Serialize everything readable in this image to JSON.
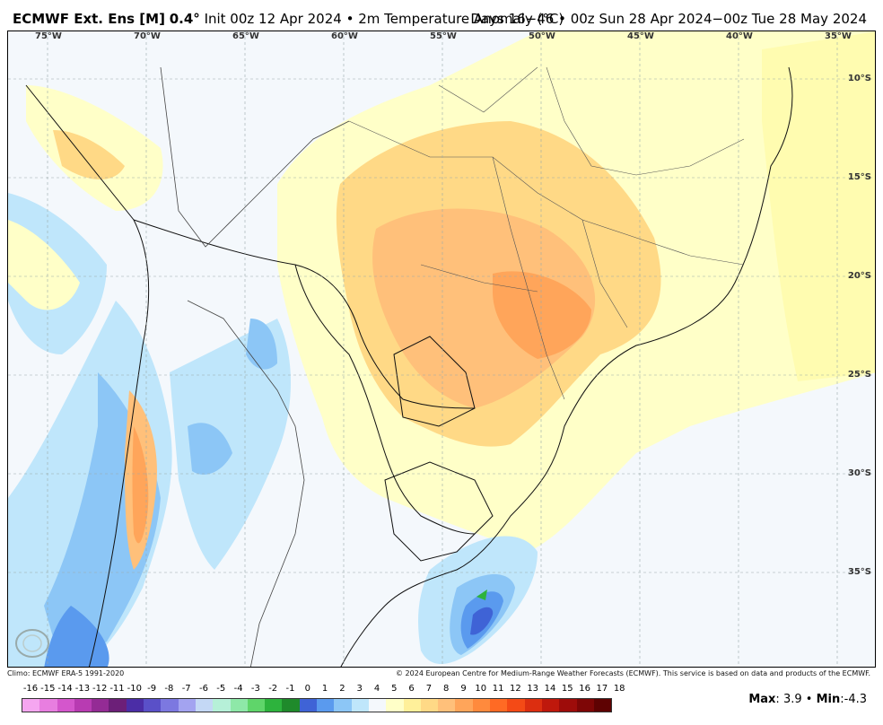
{
  "header": {
    "model": "ECMWF Ext. Ens [M]",
    "resolution": "0.4°",
    "init": "Init 00z 12 Apr 2024",
    "separator": "•",
    "variable": "2m Temperature Anomaly (°C)",
    "period": "Days 16−46 • 00z Sun 28 Apr 2024−00z Tue 28 May 2024"
  },
  "axes": {
    "longitudes": [
      "75°W",
      "70°W",
      "65°W",
      "60°W",
      "55°W",
      "50°W",
      "45°W",
      "40°W",
      "35°W"
    ],
    "latitudes": [
      "10°S",
      "15°S",
      "20°S",
      "25°S",
      "30°S",
      "35°S"
    ]
  },
  "footer": {
    "climo": "Climo: ECMWF ERA-5 1991-2020",
    "copyright": "© 2024 European Centre for Medium-Range Weather Forecasts (ECMWF). This service is based on data and products of the ECMWF."
  },
  "colorbar": {
    "labels": [
      "-16",
      "-15",
      "-14",
      "-13",
      "-12",
      "-11",
      "-10",
      "-9",
      "-8",
      "-7",
      "-6",
      "-5",
      "-4",
      "-3",
      "-2",
      "-1",
      "0",
      "1",
      "2",
      "3",
      "4",
      "5",
      "6",
      "7",
      "8",
      "9",
      "10",
      "11",
      "12",
      "13",
      "14",
      "15",
      "16",
      "17",
      "18"
    ],
    "colors": [
      "#f5a6f0",
      "#e87ee0",
      "#d456cc",
      "#b83bb2",
      "#942b95",
      "#6c1f78",
      "#4b2da6",
      "#5a50c8",
      "#7c78e0",
      "#a3a3f0",
      "#c4d8f5",
      "#b6f0d8",
      "#8ee8a8",
      "#5fd56a",
      "#2db33d",
      "#1f8a2b",
      "#3f63d6",
      "#5a9aee",
      "#8cc6f6",
      "#bfe6fb",
      "#f4f8fc",
      "#ffffc8",
      "#fff09a",
      "#ffd986",
      "#ffc07a",
      "#ffa55a",
      "#ff8a3d",
      "#ff6a24",
      "#f44a16",
      "#dc2e10",
      "#bf180c",
      "#9e0c0a",
      "#7e0606",
      "#5e0202"
    ]
  },
  "stats": {
    "max_label": "Max",
    "max_value": "3.9",
    "sep": "•",
    "min_label": "Min",
    "min_value": "-4.3"
  },
  "logo": {
    "text": "WEATHERBELL"
  }
}
